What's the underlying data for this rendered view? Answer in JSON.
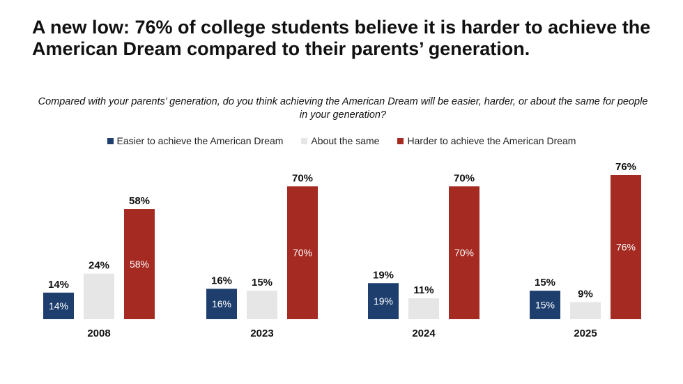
{
  "title": "A new low: 76% of college students believe it is harder to achieve the American Dream compared to their parents’ generation.",
  "question": "Compared with your parents’ generation, do you think achieving the American Dream will be easier, harder, or about the same for people in your generation?",
  "chart_data": {
    "type": "bar",
    "categories": [
      "2008",
      "2023",
      "2024",
      "2025"
    ],
    "series": [
      {
        "name": "Easier to achieve the American Dream",
        "color": "#1e3f6e",
        "values": [
          14,
          16,
          19,
          15
        ],
        "inner_labels": true
      },
      {
        "name": "About the same",
        "color": "#e6e6e6",
        "values": [
          24,
          15,
          11,
          9
        ],
        "inner_labels": false
      },
      {
        "name": "Harder to achieve the American Dream",
        "color": "#a52a22",
        "values": [
          58,
          70,
          70,
          76
        ],
        "inner_labels": true
      }
    ],
    "value_suffix": "%",
    "ylim": [
      0,
      76
    ],
    "grid": false,
    "legend_position": "top"
  }
}
